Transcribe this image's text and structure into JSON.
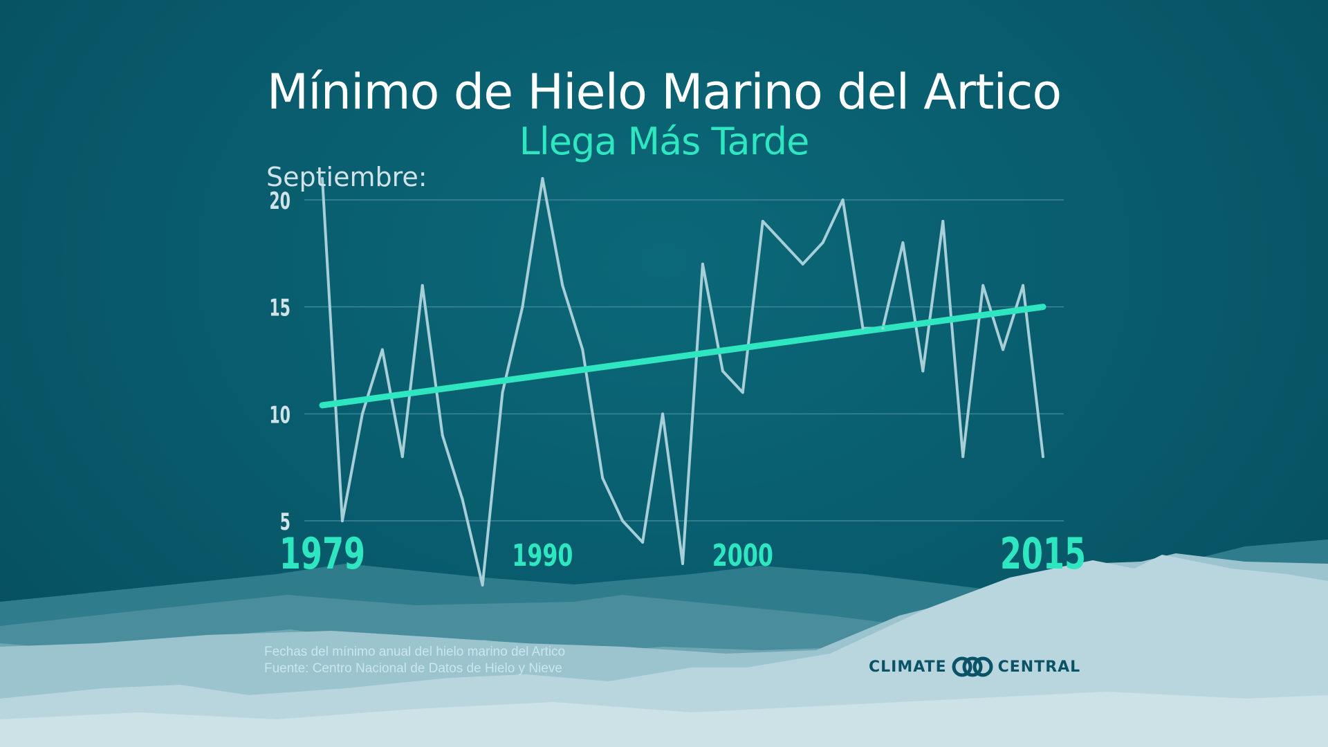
{
  "title": "Mínimo de Hielo Marino del Artico",
  "subtitle": "Llega Más Tarde",
  "footnote": {
    "line1": "Fechas del mínimo anual del hielo marino del Artico",
    "line2": "Fuente: Centro Nacional de Datos de Hielo y Nieve"
  },
  "logo": {
    "left": "CLIMATE",
    "right": "CENTRAL"
  },
  "colors": {
    "background": "#085a6b",
    "title": "#ffffff",
    "accent": "#2ee6c0",
    "data_line": "#a6cfd8",
    "grid": "#3f8595"
  },
  "chart_data": {
    "type": "line",
    "title": "Mínimo de Hielo Marino del Artico",
    "subtitle": "Llega Más Tarde",
    "ylabel": "Septiembre:",
    "ylim": [
      4,
      21
    ],
    "yticks": [
      5,
      10,
      15,
      20
    ],
    "xlim": [
      1979,
      2015
    ],
    "xticks": [
      {
        "value": 1979,
        "label": "1979",
        "highlight": true
      },
      {
        "value": 1990,
        "label": "1990",
        "highlight": false
      },
      {
        "value": 2000,
        "label": "2000",
        "highlight": false
      },
      {
        "value": 2015,
        "label": "2015",
        "highlight": true
      }
    ],
    "grid": true,
    "x": [
      1979,
      1980,
      1981,
      1982,
      1983,
      1984,
      1985,
      1986,
      1987,
      1988,
      1989,
      1990,
      1991,
      1992,
      1993,
      1994,
      1995,
      1996,
      1997,
      1998,
      1999,
      2000,
      2001,
      2002,
      2003,
      2004,
      2005,
      2006,
      2007,
      2008,
      2009,
      2010,
      2011,
      2012,
      2013,
      2014,
      2015
    ],
    "series": [
      {
        "values": [
          21,
          5,
          10,
          13,
          8,
          16,
          9,
          6,
          2,
          11,
          15,
          21,
          16,
          13,
          7,
          5,
          4,
          10,
          3,
          17,
          12,
          11,
          19,
          18,
          17,
          18,
          20,
          14,
          14,
          18,
          12,
          19,
          8,
          16,
          13,
          16,
          8
        ]
      }
    ],
    "trend": {
      "start": [
        1979,
        10.4
      ],
      "end": [
        2015,
        15
      ]
    }
  }
}
